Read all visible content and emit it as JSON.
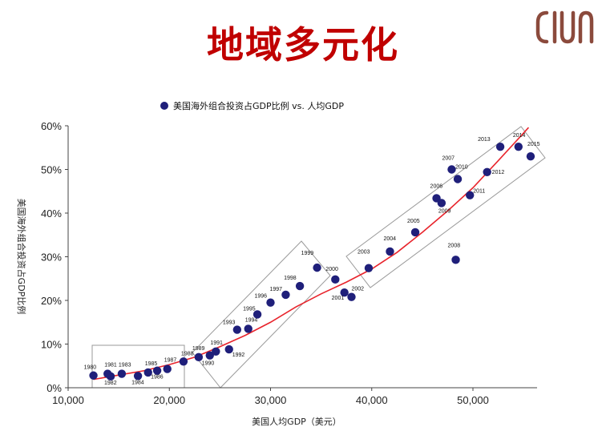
{
  "slide": {
    "title": "地域多元化",
    "logo_color": "#8b4a3c"
  },
  "chart_data": {
    "type": "scatter",
    "legend": "美国海外组合投资占GDP比例 vs. 人均GDP",
    "legend_position": "top",
    "xlabel": "美国人均GDP（美元）",
    "ylabel": "美国海外组合投资占GDP比例",
    "xlim": [
      10000,
      55000
    ],
    "ylim": [
      0,
      60
    ],
    "x_ticks": [
      "10,000",
      "20,000",
      "30,000",
      "40,000",
      "50,000"
    ],
    "y_ticks": [
      "0%",
      "10%",
      "20%",
      "30%",
      "40%",
      "50%",
      "60%"
    ],
    "grid": false,
    "point_color": "#1f1f7a",
    "trend_color": "#e8242c",
    "points": [
      {
        "label": "1980",
        "x": 12500,
        "y": 2.8
      },
      {
        "label": "1981",
        "x": 13900,
        "y": 3.2
      },
      {
        "label": "1982",
        "x": 14200,
        "y": 2.6
      },
      {
        "label": "1983",
        "x": 15300,
        "y": 3.2
      },
      {
        "label": "1984",
        "x": 16900,
        "y": 2.7
      },
      {
        "label": "1985",
        "x": 17900,
        "y": 3.5
      },
      {
        "label": "1986",
        "x": 18800,
        "y": 3.9
      },
      {
        "label": "1987",
        "x": 19800,
        "y": 4.3
      },
      {
        "label": "1988",
        "x": 21400,
        "y": 6.0
      },
      {
        "label": "1989",
        "x": 22900,
        "y": 7.0
      },
      {
        "label": "1990",
        "x": 24000,
        "y": 7.4
      },
      {
        "label": "1991",
        "x": 24600,
        "y": 8.3
      },
      {
        "label": "1992",
        "x": 25900,
        "y": 8.8
      },
      {
        "label": "1993",
        "x": 26700,
        "y": 13.3
      },
      {
        "label": "1994",
        "x": 27800,
        "y": 13.5
      },
      {
        "label": "1995",
        "x": 28700,
        "y": 16.8
      },
      {
        "label": "1996",
        "x": 30000,
        "y": 19.5
      },
      {
        "label": "1997",
        "x": 31500,
        "y": 21.3
      },
      {
        "label": "1998",
        "x": 32900,
        "y": 23.3
      },
      {
        "label": "1999",
        "x": 34600,
        "y": 27.5
      },
      {
        "label": "2000",
        "x": 36400,
        "y": 24.8
      },
      {
        "label": "2001",
        "x": 37300,
        "y": 21.8
      },
      {
        "label": "2002",
        "x": 38000,
        "y": 20.8
      },
      {
        "label": "2003",
        "x": 39700,
        "y": 27.4
      },
      {
        "label": "2004",
        "x": 41800,
        "y": 31.2
      },
      {
        "label": "2005",
        "x": 44300,
        "y": 35.6
      },
      {
        "label": "2006",
        "x": 46400,
        "y": 43.4
      },
      {
        "label": "2007",
        "x": 47900,
        "y": 50.0
      },
      {
        "label": "2008",
        "x": 48300,
        "y": 29.3
      },
      {
        "label": "2009",
        "x": 46900,
        "y": 42.3
      },
      {
        "label": "2010",
        "x": 48500,
        "y": 47.8
      },
      {
        "label": "2011",
        "x": 49700,
        "y": 44.1
      },
      {
        "label": "2012",
        "x": 51400,
        "y": 49.4
      },
      {
        "label": "2013",
        "x": 52700,
        "y": 55.2
      },
      {
        "label": "2014",
        "x": 54500,
        "y": 55.2
      },
      {
        "label": "2015",
        "x": 55700,
        "y": 53.0
      }
    ],
    "trend_line": [
      {
        "x": 12500,
        "y": 1.9
      },
      {
        "x": 15000,
        "y": 2.9
      },
      {
        "x": 17500,
        "y": 3.9
      },
      {
        "x": 20000,
        "y": 5.3
      },
      {
        "x": 22500,
        "y": 7.0
      },
      {
        "x": 25000,
        "y": 9.4
      },
      {
        "x": 27500,
        "y": 12.0
      },
      {
        "x": 30000,
        "y": 15.0
      },
      {
        "x": 32500,
        "y": 18.5
      },
      {
        "x": 35000,
        "y": 21.5
      },
      {
        "x": 37500,
        "y": 24.2
      },
      {
        "x": 40000,
        "y": 27.2
      },
      {
        "x": 42500,
        "y": 31.0
      },
      {
        "x": 45000,
        "y": 35.6
      },
      {
        "x": 47500,
        "y": 40.5
      },
      {
        "x": 50000,
        "y": 45.8
      },
      {
        "x": 52500,
        "y": 52.0
      },
      {
        "x": 55500,
        "y": 59.6
      }
    ]
  }
}
